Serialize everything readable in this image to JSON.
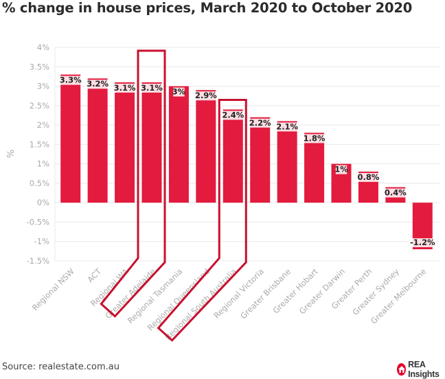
{
  "header": {
    "title": "% change in house prices, March 2020 to October 2020"
  },
  "footer": {
    "source": "Source: realestate.com.au",
    "brand": "REA Insights",
    "brand_icon": "house-icon"
  },
  "colors": {
    "bar": "#e31b3e",
    "highlight": "#c8102e",
    "grid": "#e8e8e8",
    "tick_text": "#aaaaaa",
    "label_text": "#222222"
  },
  "chart_data": {
    "type": "bar",
    "title": "% change in house prices, March 2020 to October 2020",
    "xlabel": "",
    "ylabel": "%",
    "ylim": [
      -1.5,
      4
    ],
    "yticks": [
      4,
      3.5,
      3,
      2.5,
      2,
      1.5,
      1,
      0.5,
      0,
      -0.5,
      -1,
      -1.5
    ],
    "ytick_labels": [
      "4%",
      "3.5%",
      "3%",
      "2.5%",
      "2%",
      "1.5%",
      "1%",
      "0.5%",
      "0%",
      "-0.5%",
      "-1%",
      "-1.5%"
    ],
    "grid": true,
    "legend": "none",
    "categories": [
      "Regional NSW",
      "ACT",
      "Regional WA",
      "Greater Adelaide",
      "Regional Tasmania",
      "Regional Queensland",
      "Regional South Australia",
      "Regional Victoria",
      "Greater Brisbane",
      "Greater Hobart",
      "Greater Darwin",
      "Greater Perth",
      "Greater Sydney",
      "Greater Melbourne"
    ],
    "values": [
      3.3,
      3.2,
      3.1,
      3.1,
      3.0,
      2.9,
      2.4,
      2.2,
      2.1,
      1.8,
      1.0,
      0.8,
      0.4,
      -1.2
    ],
    "data_labels": [
      "3.3%",
      "3.2%",
      "3.1%",
      "3.1%",
      "3%",
      "2.9%",
      "2.4%",
      "2.2%",
      "2.1%",
      "1.8%",
      "1%",
      "0.8%",
      "0.4%",
      "-1.2%"
    ],
    "highlighted": [
      "Greater Adelaide",
      "Regional South Australia"
    ]
  }
}
